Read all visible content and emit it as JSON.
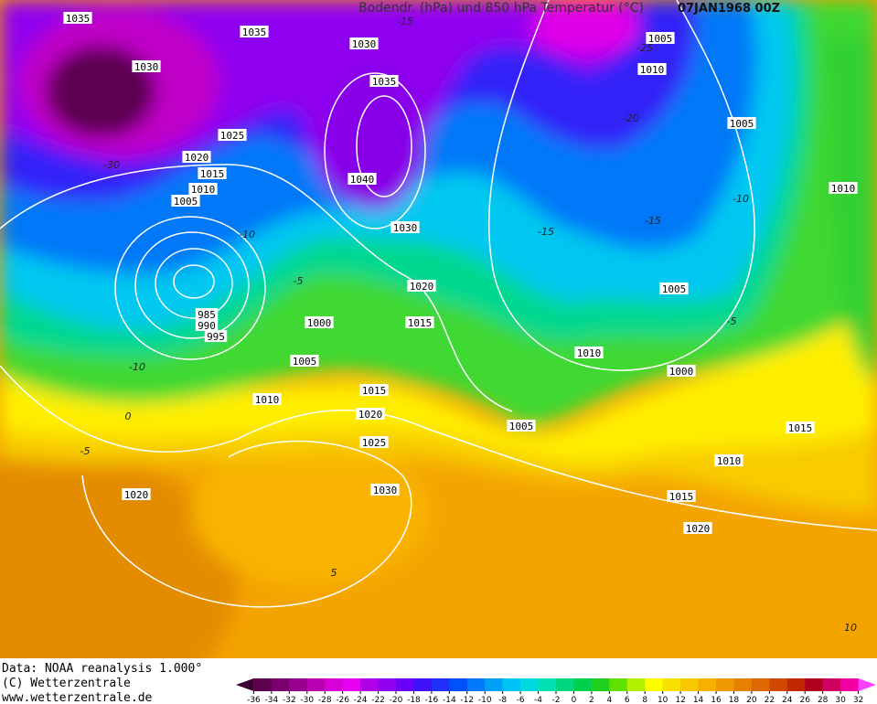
{
  "header": {
    "title": "Bodendr. (hPa) und 850 hPa Temperatur (°C)",
    "date": "07JAN1968 00Z"
  },
  "isobar_labels": [
    "1035",
    "1035",
    "1030",
    "1030",
    "1035",
    "1025",
    "1020",
    "1015",
    "1010",
    "1005",
    "1040",
    "1030",
    "1020",
    "1015",
    "985",
    "990",
    "995",
    "1000",
    "1005",
    "1010",
    "1015",
    "1020",
    "1025",
    "1030",
    "1020",
    "1005",
    "1010",
    "1005",
    "1010",
    "1005",
    "1010",
    "1000",
    "1005",
    "1010",
    "1015",
    "1015",
    "1020"
  ],
  "temperature_labels": [
    "-15",
    "-25",
    "-20",
    "-30",
    "-10",
    "-5",
    "-10",
    "0",
    "-5",
    "-15",
    "-15",
    "-10",
    "-5",
    "5",
    "10"
  ],
  "footer": {
    "source": "Data: NOAA reanalysis 1.000°",
    "copyright": "(C) Wetterzentrale",
    "url": "www.wetterzentrale.de"
  },
  "colorbar": {
    "ticks": [
      -36,
      -34,
      -32,
      -30,
      -28,
      -26,
      -24,
      -22,
      -20,
      -18,
      -16,
      -14,
      -12,
      -10,
      -8,
      -6,
      -4,
      -2,
      0,
      2,
      4,
      6,
      8,
      10,
      12,
      14,
      16,
      18,
      20,
      22,
      24,
      26,
      28,
      30,
      32
    ],
    "colors": [
      "#3c0032",
      "#5c0050",
      "#7a0070",
      "#980090",
      "#b800b0",
      "#d800d8",
      "#e800f0",
      "#b000e8",
      "#9000f0",
      "#6a00f8",
      "#4010f8",
      "#2030f8",
      "#0050f8",
      "#0078f8",
      "#00a0f8",
      "#00c4f8",
      "#00d8e0",
      "#00e0b0",
      "#00d880",
      "#00d050",
      "#20d020",
      "#60e000",
      "#b0f000",
      "#ffff00",
      "#f8e000",
      "#f8c800",
      "#f8b000",
      "#f09800",
      "#e88000",
      "#e06800",
      "#d04800",
      "#c02800",
      "#b00020",
      "#d00060",
      "#f000a0",
      "#ff40ff"
    ]
  }
}
